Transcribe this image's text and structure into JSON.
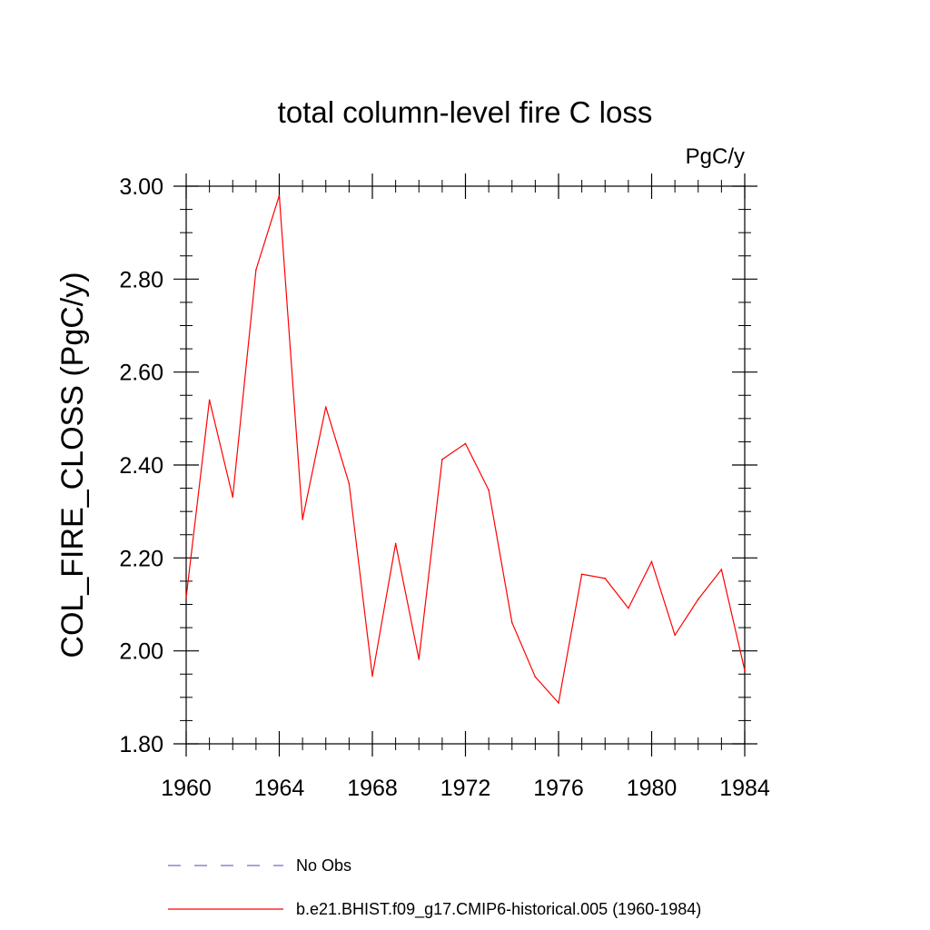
{
  "chart_data": {
    "type": "line",
    "title": "total column-level fire C loss",
    "units": "PgC/y",
    "xlabel": "",
    "ylabel": "COL_FIRE_CLOSS  (PgC/y)",
    "xlim": [
      1960,
      1984
    ],
    "ylim": [
      1.8,
      3.0
    ],
    "x_ticks": [
      1960,
      1964,
      1968,
      1972,
      1976,
      1980,
      1984
    ],
    "x_tick_labels": [
      "1960",
      "1964",
      "1968",
      "1972",
      "1976",
      "1980",
      "1984"
    ],
    "y_ticks": [
      1.8,
      2.0,
      2.2,
      2.4,
      2.6,
      2.8,
      3.0
    ],
    "y_tick_labels": [
      "1.80",
      "2.00",
      "2.20",
      "2.40",
      "2.60",
      "2.80",
      "3.00"
    ],
    "x": [
      1960,
      1961,
      1962,
      1963,
      1964,
      1965,
      1966,
      1967,
      1968,
      1969,
      1970,
      1971,
      1972,
      1973,
      1974,
      1975,
      1976,
      1977,
      1978,
      1979,
      1980,
      1981,
      1982,
      1983,
      1984
    ],
    "series": [
      {
        "name": "b.e21.BHIST.f09_g17.CMIP6-historical.005 (1960-1984)",
        "color": "#ff0000",
        "style": "solid",
        "values": [
          2.115,
          2.54,
          2.331,
          2.82,
          2.98,
          2.283,
          2.525,
          2.36,
          1.946,
          2.231,
          1.982,
          2.412,
          2.446,
          2.346,
          2.061,
          1.944,
          1.888,
          2.165,
          2.156,
          2.092,
          2.192,
          2.034,
          2.111,
          2.175,
          1.958
        ]
      }
    ],
    "legend": [
      {
        "label": "No Obs",
        "color": "#7070c0",
        "style": "dashed"
      },
      {
        "label": "b.e21.BHIST.f09_g17.CMIP6-historical.005 (1960-1984)",
        "color": "#ff0000",
        "style": "solid"
      }
    ],
    "legend_position": "bottom",
    "grid": false
  }
}
